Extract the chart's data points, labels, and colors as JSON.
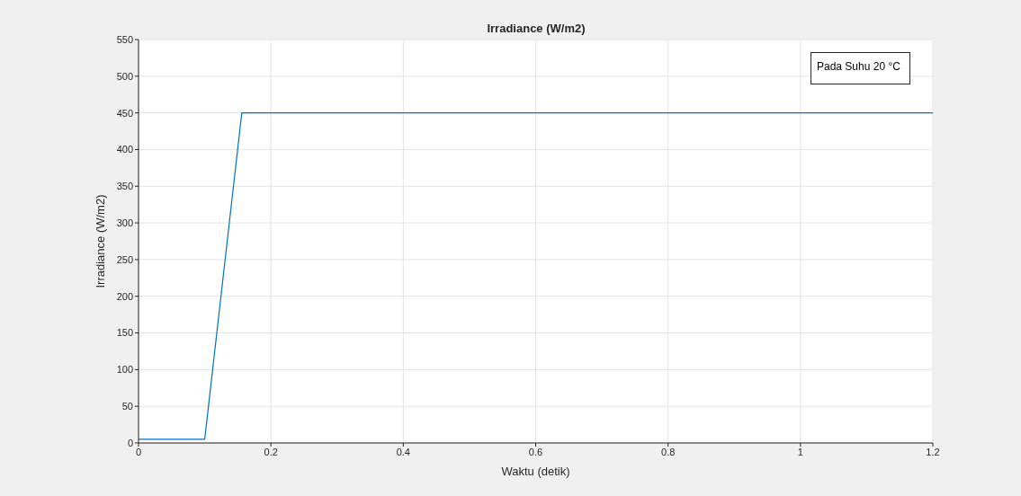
{
  "chart_data": {
    "type": "line",
    "title": "Irradiance (W/m2)",
    "xlabel": "Waktu (detik)",
    "ylabel": "Irradiance (W/m2)",
    "x": [
      0,
      0.1,
      0.156,
      1.2
    ],
    "series": [
      {
        "color": "#0072bd",
        "values": [
          5,
          5,
          450,
          450
        ]
      }
    ],
    "xlim": [
      0,
      1.2
    ],
    "xticks": [
      0,
      0.2,
      0.4,
      0.6,
      0.8,
      1,
      1.2
    ],
    "ylim": [
      0,
      550
    ],
    "yticks": [
      0,
      50,
      100,
      150,
      200,
      250,
      300,
      350,
      400,
      450,
      500,
      550
    ],
    "grid": true,
    "marker": "none",
    "line_style": "solid",
    "annotations": [
      "Pada Suhu 20 °C"
    ]
  }
}
